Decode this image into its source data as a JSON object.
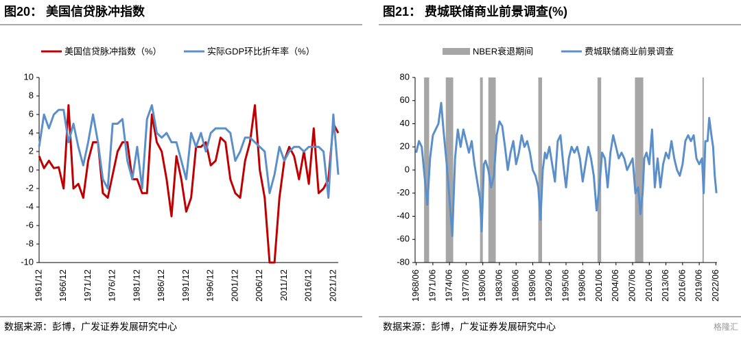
{
  "chart_data": [
    {
      "type": "line",
      "title": "图20： 美国信贷脉冲指数",
      "source": "数据来源：彭博，广发证券发展研究中心",
      "categories": [
        "1961/12",
        null,
        null,
        null,
        null,
        "1966/12",
        null,
        null,
        null,
        null,
        "1971/12",
        null,
        null,
        null,
        null,
        "1976/12",
        null,
        null,
        null,
        null,
        "1981/12",
        null,
        null,
        null,
        null,
        "1986/12",
        null,
        null,
        null,
        null,
        "1991/12",
        null,
        null,
        null,
        null,
        "1996/12",
        null,
        null,
        null,
        null,
        "2001/12",
        null,
        null,
        null,
        null,
        "2006/12",
        null,
        null,
        null,
        null,
        "2011/12",
        null,
        null,
        null,
        null,
        "2016/12",
        null,
        null,
        null,
        null,
        "2021/12",
        null
      ],
      "series": [
        {
          "name": "美国信贷脉冲指数（%）",
          "color": "#c00000",
          "values": [
            1.5,
            0.2,
            1,
            0.2,
            0.3,
            -2,
            7,
            -2,
            -1.5,
            -3,
            1,
            3,
            3,
            -2.5,
            -3,
            -0.5,
            2,
            3,
            3,
            -1,
            -1,
            -2.5,
            -2.5,
            6,
            3,
            2,
            -1,
            -5,
            1.5,
            -1,
            -4.5,
            -3,
            2.5,
            2.5,
            3,
            0.5,
            1,
            3.5,
            3,
            -1,
            -2.5,
            -3,
            1,
            3,
            7,
            0,
            -3,
            -10,
            -10,
            -3,
            1,
            2.5,
            1.5,
            -1,
            2,
            -1.5,
            4.5,
            -2.5,
            -2,
            -1,
            5,
            4
          ]
        },
        {
          "name": "实际GDP环比折年率（%）",
          "color": "#5b8fc9",
          "values": [
            2.5,
            6,
            4.5,
            6,
            6.5,
            6.5,
            3,
            5,
            2.5,
            0.5,
            3,
            6,
            3,
            -1,
            -2,
            5,
            5,
            5.5,
            1,
            -1,
            2.5,
            -2,
            5.5,
            7,
            4,
            3.5,
            4,
            3,
            3,
            1,
            -1,
            4,
            2.5,
            4,
            2,
            4,
            4.5,
            4.5,
            4.5,
            4,
            1,
            2,
            3.5,
            3.5,
            3,
            2.5,
            2,
            -2.5,
            -0.5,
            2.5,
            1,
            2,
            2.5,
            2.5,
            2,
            2.5,
            2.5,
            2.5,
            2,
            -3,
            6,
            -0.5
          ]
        }
      ],
      "ylim": [
        -10,
        10
      ],
      "yticks": [
        -10,
        -8,
        -6,
        -4,
        -2,
        0,
        2,
        4,
        6,
        8,
        10
      ]
    },
    {
      "type": "line",
      "title": "图21： 费城联储商业前景调查(%)",
      "source": "数据来源：彭博，广发证券发展研究中心",
      "watermark": "格隆汇",
      "bands": {
        "name": "NBER衰退期间",
        "color": "#a6a6a6",
        "ranges": [
          [
            1969.92,
            1970.83
          ],
          [
            1973.83,
            1975.17
          ],
          [
            1980.0,
            1980.5
          ],
          [
            1981.5,
            1982.83
          ],
          [
            1990.5,
            1991.17
          ],
          [
            2001.17,
            2001.83
          ],
          [
            2007.92,
            2009.42
          ],
          [
            2020.08,
            2020.25
          ]
        ]
      },
      "x": [
        1968.5,
        1969.0,
        1969.5,
        1970.0,
        1970.5,
        1971.0,
        1971.5,
        1972.0,
        1972.5,
        1973.0,
        1973.5,
        1974.0,
        1974.5,
        1975.0,
        1975.5,
        1976.0,
        1976.5,
        1977.0,
        1977.5,
        1978.0,
        1978.5,
        1979.0,
        1979.5,
        1980.0,
        1980.3,
        1980.7,
        1981.0,
        1981.5,
        1982.0,
        1982.5,
        1983.0,
        1983.5,
        1984.0,
        1984.5,
        1985.0,
        1985.5,
        1986.0,
        1986.5,
        1987.0,
        1987.5,
        1988.0,
        1988.5,
        1989.0,
        1989.5,
        1990.0,
        1990.5,
        1990.9,
        1991.3,
        1991.7,
        1992.0,
        1992.5,
        1993.0,
        1993.5,
        1994.0,
        1994.5,
        1995.0,
        1995.5,
        1996.0,
        1996.5,
        1997.0,
        1997.5,
        1998.0,
        1998.5,
        1999.0,
        1999.5,
        2000.0,
        2000.5,
        2001.0,
        2001.5,
        2002.0,
        2002.5,
        2003.0,
        2003.5,
        2004.0,
        2004.5,
        2005.0,
        2005.5,
        2006.0,
        2006.5,
        2007.0,
        2007.5,
        2008.0,
        2008.5,
        2008.9,
        2009.3,
        2009.6,
        2010.0,
        2010.5,
        2011.0,
        2011.5,
        2012.0,
        2012.5,
        2013.0,
        2013.5,
        2014.0,
        2014.5,
        2015.0,
        2015.5,
        2016.0,
        2016.5,
        2017.0,
        2017.5,
        2018.0,
        2018.5,
        2019.0,
        2019.5,
        2020.0,
        2020.3,
        2020.6,
        2021.0,
        2021.3,
        2021.7,
        2022.0,
        2022.3,
        2022.6
      ],
      "series": [
        {
          "name": "费城联储商业前景调查",
          "color": "#5b8fc9",
          "values": [
            15,
            25,
            20,
            -5,
            -30,
            10,
            30,
            35,
            40,
            58,
            30,
            5,
            -25,
            -57,
            10,
            35,
            20,
            35,
            25,
            15,
            25,
            5,
            -10,
            -25,
            -53,
            5,
            8,
            0,
            -15,
            -5,
            30,
            42,
            38,
            20,
            0,
            15,
            25,
            5,
            15,
            30,
            20,
            25,
            15,
            0,
            -5,
            -15,
            -43,
            0,
            15,
            10,
            20,
            5,
            -10,
            25,
            30,
            5,
            -15,
            10,
            20,
            15,
            20,
            10,
            -10,
            5,
            20,
            10,
            -5,
            -35,
            -15,
            15,
            10,
            -15,
            15,
            30,
            20,
            10,
            15,
            10,
            0,
            5,
            10,
            -20,
            -15,
            -38,
            -20,
            10,
            15,
            5,
            35,
            -15,
            10,
            -15,
            5,
            15,
            10,
            25,
            10,
            0,
            -5,
            5,
            25,
            30,
            25,
            30,
            10,
            5,
            10,
            -20,
            25,
            25,
            45,
            30,
            20,
            -5,
            -20
          ]
        }
      ],
      "xlim": [
        1968.3,
        2022.7
      ],
      "xticks": [
        {
          "value": 1968.5,
          "label": "1968/06"
        },
        {
          "value": 1971.5,
          "label": "1971/06"
        },
        {
          "value": 1974.5,
          "label": "1974/06"
        },
        {
          "value": 1977.5,
          "label": "1977/06"
        },
        {
          "value": 1980.5,
          "label": "1980/06"
        },
        {
          "value": 1983.5,
          "label": "1983/06"
        },
        {
          "value": 1986.5,
          "label": "1986/06"
        },
        {
          "value": 1989.5,
          "label": "1989/06"
        },
        {
          "value": 1992.5,
          "label": "1992/06"
        },
        {
          "value": 1995.5,
          "label": "1995/06"
        },
        {
          "value": 1998.5,
          "label": "1998/06"
        },
        {
          "value": 2001.5,
          "label": "2001/06"
        },
        {
          "value": 2004.5,
          "label": "2004/06"
        },
        {
          "value": 2007.5,
          "label": "2007/06"
        },
        {
          "value": 2010.5,
          "label": "2010/06"
        },
        {
          "value": 2013.5,
          "label": "2013/06"
        },
        {
          "value": 2016.5,
          "label": "2016/06"
        },
        {
          "value": 2019.5,
          "label": "2019/06"
        },
        {
          "value": 2022.5,
          "label": "2022/06"
        }
      ],
      "ylim": [
        -80,
        80
      ],
      "yticks": [
        -80,
        -60,
        -40,
        -20,
        0,
        20,
        40,
        60,
        80
      ]
    }
  ]
}
